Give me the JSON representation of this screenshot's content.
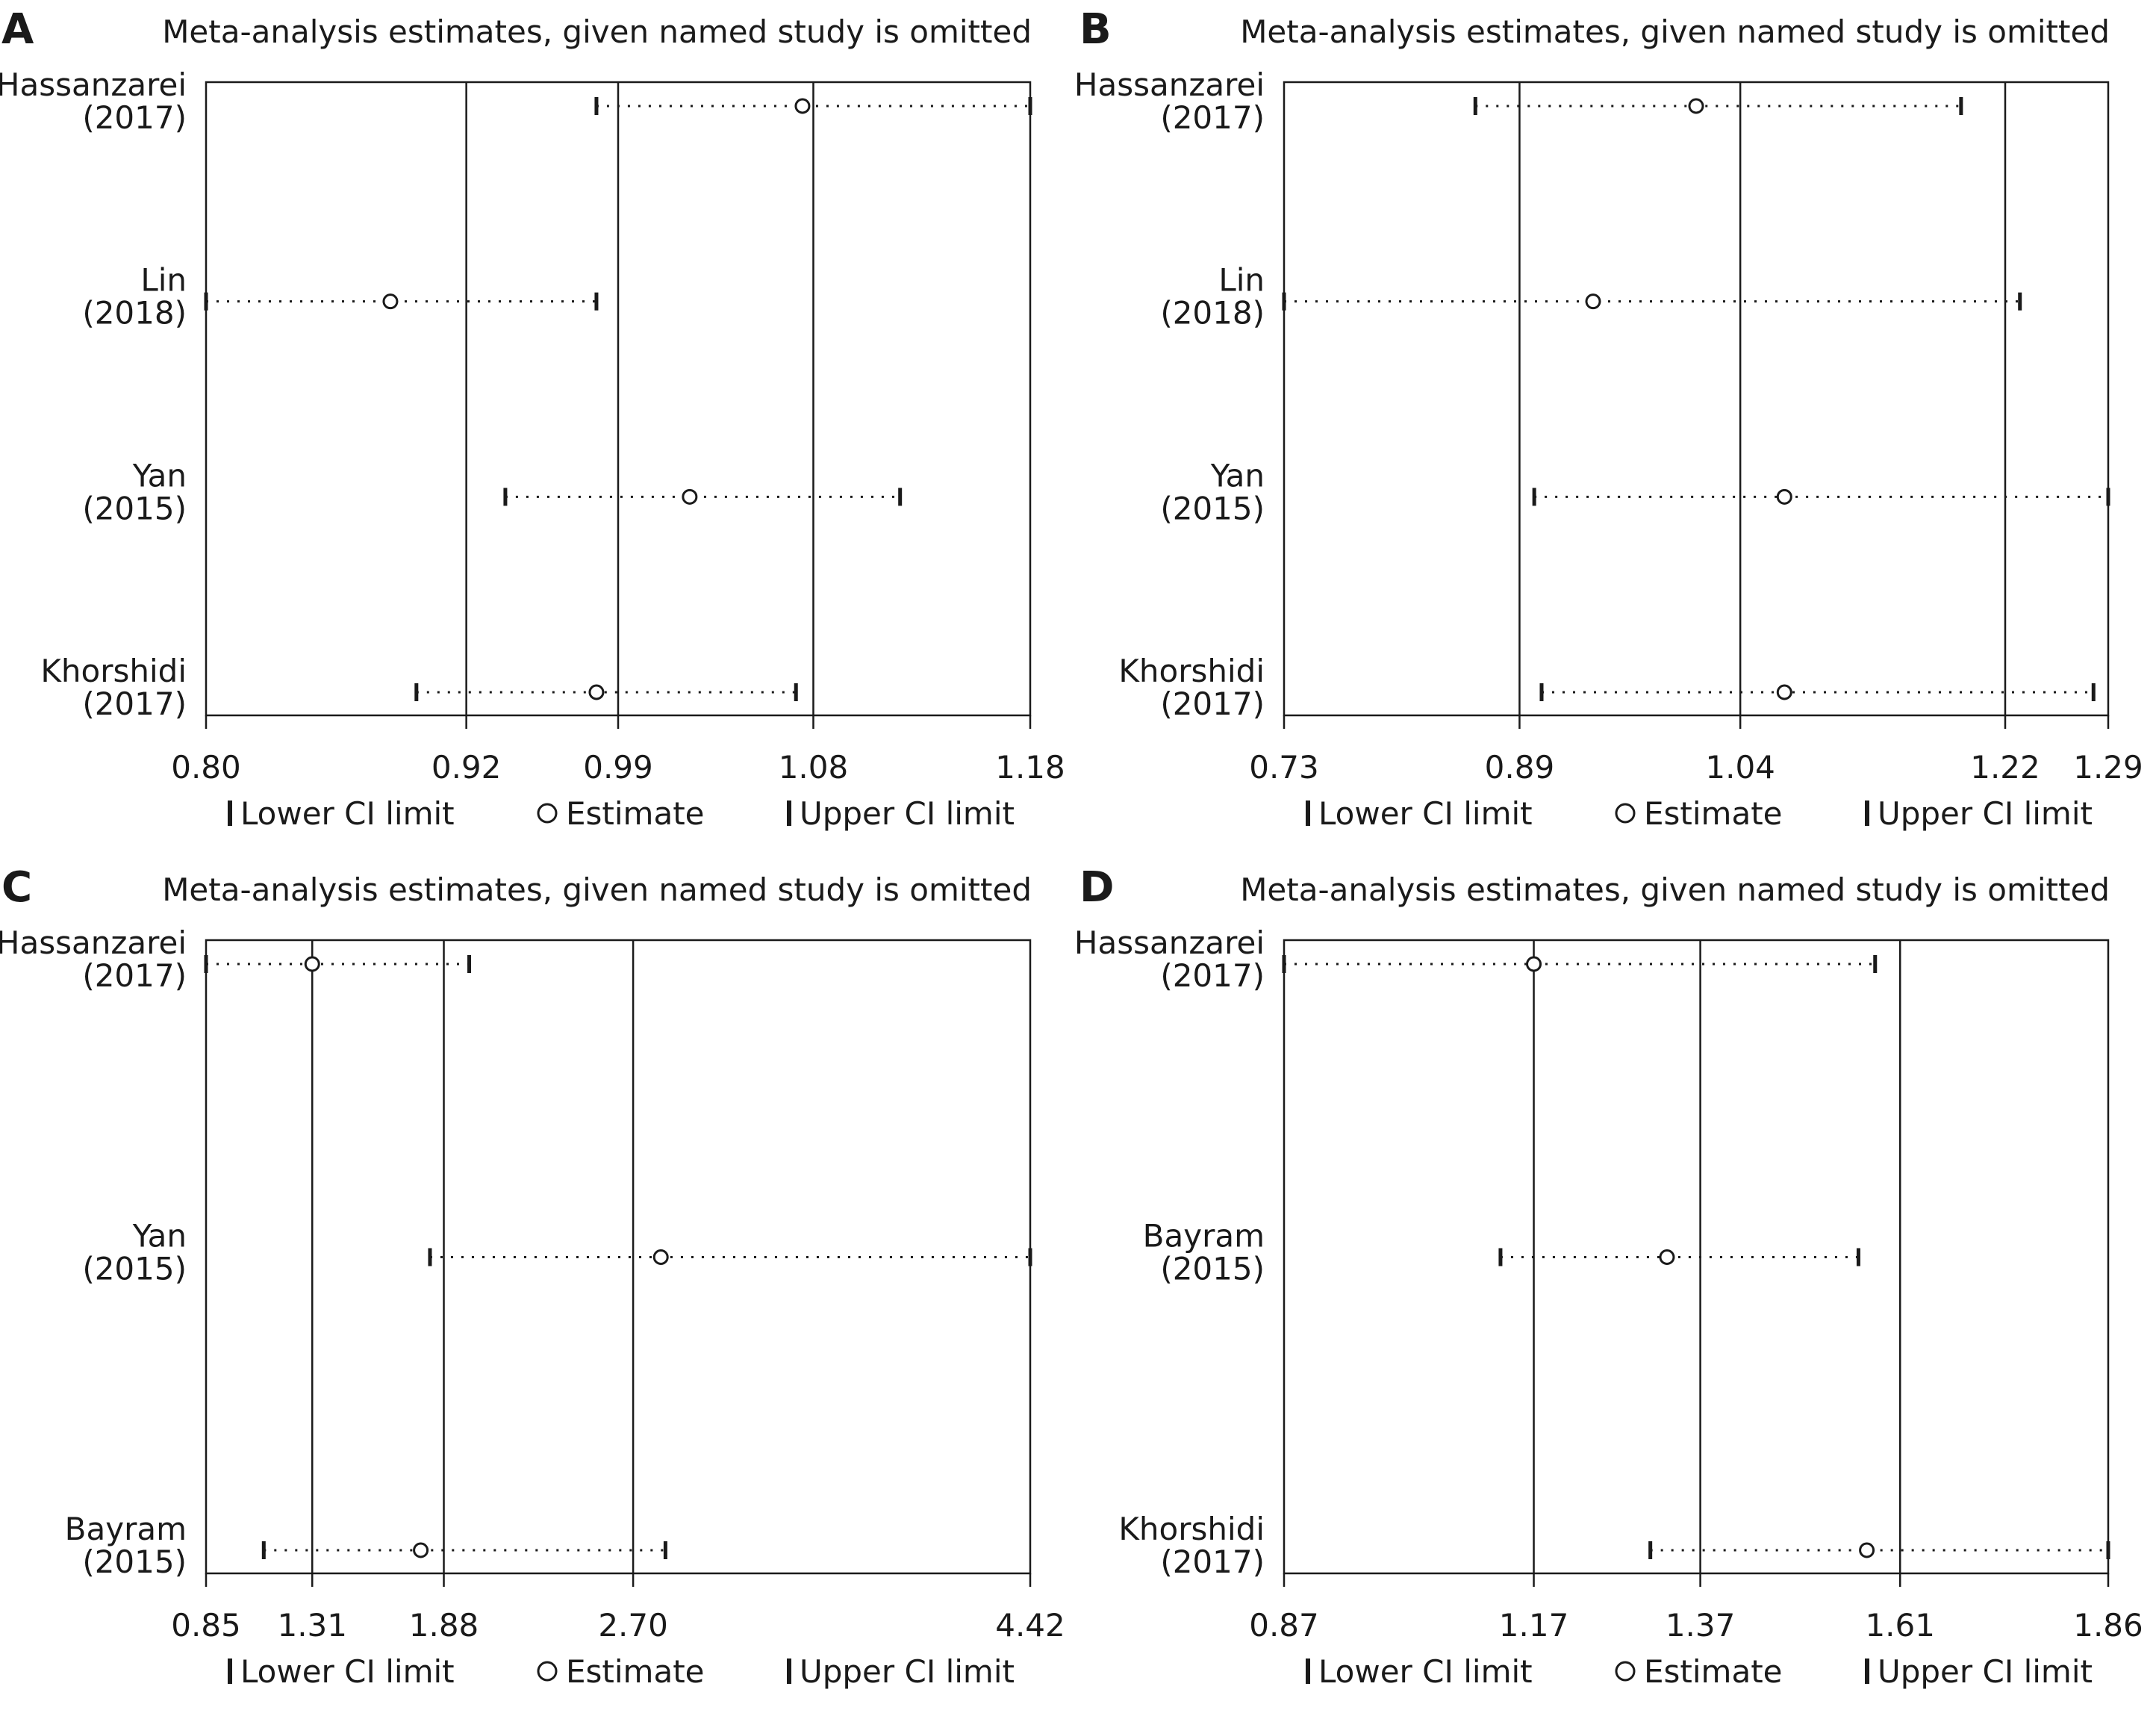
{
  "chart_data": [
    {
      "type": "forest",
      "panel_label": "A",
      "title": "Meta-analysis estimates, given named study is omitted",
      "xticks": [
        "0.80",
        "0.92",
        "0.99",
        "1.08",
        "1.18"
      ],
      "xlim": [
        0.8,
        1.18
      ],
      "reference_lines": [
        0.92,
        0.99,
        1.08
      ],
      "studies": [
        {
          "name": "Hassanzarei",
          "year": "(2017)",
          "lower": 0.98,
          "estimate": 1.075,
          "upper": 1.18
        },
        {
          "name": "Lin",
          "year": "(2018)",
          "lower": 0.8,
          "estimate": 0.885,
          "upper": 0.98
        },
        {
          "name": "Yan",
          "year": "(2015)",
          "lower": 0.938,
          "estimate": 1.023,
          "upper": 1.12
        },
        {
          "name": "Khorshidi",
          "year": "(2017)",
          "lower": 0.897,
          "estimate": 0.98,
          "upper": 1.072
        }
      ],
      "legend": {
        "lower": "Lower CI limit",
        "estimate": "Estimate",
        "upper": "Upper CI limit"
      }
    },
    {
      "type": "forest",
      "panel_label": "B",
      "title": "Meta-analysis estimates, given named study is omitted",
      "xticks": [
        "0.73",
        "0.89",
        "1.04",
        "1.22",
        "1.29"
      ],
      "xlim": [
        0.73,
        1.29
      ],
      "reference_lines": [
        0.89,
        1.04,
        1.22
      ],
      "studies": [
        {
          "name": "Hassanzarei",
          "year": "(2017)",
          "lower": 0.86,
          "estimate": 1.01,
          "upper": 1.19
        },
        {
          "name": "Lin",
          "year": "(2018)",
          "lower": 0.73,
          "estimate": 0.94,
          "upper": 1.23
        },
        {
          "name": "Yan",
          "year": "(2015)",
          "lower": 0.9,
          "estimate": 1.07,
          "upper": 1.29
        },
        {
          "name": "Khorshidi",
          "year": "(2017)",
          "lower": 0.905,
          "estimate": 1.07,
          "upper": 1.28
        }
      ],
      "legend": {
        "lower": "Lower CI limit",
        "estimate": "Estimate",
        "upper": "Upper CI limit"
      }
    },
    {
      "type": "forest",
      "panel_label": "C",
      "title": "Meta-analysis estimates, given named study is omitted",
      "xticks": [
        "0.85",
        "1.31",
        "1.88",
        "2.70",
        "4.42"
      ],
      "xlim": [
        0.85,
        4.42
      ],
      "reference_lines": [
        1.31,
        1.88,
        2.7
      ],
      "studies": [
        {
          "name": "Hassanzarei",
          "year": "(2017)",
          "lower": 0.85,
          "estimate": 1.31,
          "upper": 1.99
        },
        {
          "name": "Yan",
          "year": "(2015)",
          "lower": 1.82,
          "estimate": 2.82,
          "upper": 4.42
        },
        {
          "name": "Bayram",
          "year": "(2015)",
          "lower": 1.1,
          "estimate": 1.78,
          "upper": 2.84
        }
      ],
      "legend": {
        "lower": "Lower CI limit",
        "estimate": "Estimate",
        "upper": "Upper CI limit"
      }
    },
    {
      "type": "forest",
      "panel_label": "D",
      "title": "Meta-analysis estimates, given named study is omitted",
      "xticks": [
        "0.87",
        "1.17",
        "1.37",
        "1.61",
        "1.86"
      ],
      "xlim": [
        0.87,
        1.86
      ],
      "reference_lines": [
        1.17,
        1.37,
        1.61
      ],
      "studies": [
        {
          "name": "Hassanzarei",
          "year": "(2017)",
          "lower": 0.87,
          "estimate": 1.17,
          "upper": 1.58
        },
        {
          "name": "Bayram",
          "year": "(2015)",
          "lower": 1.13,
          "estimate": 1.33,
          "upper": 1.56
        },
        {
          "name": "Khorshidi",
          "year": "(2017)",
          "lower": 1.31,
          "estimate": 1.57,
          "upper": 1.86
        }
      ],
      "legend": {
        "lower": "Lower CI limit",
        "estimate": "Estimate",
        "upper": "Upper CI limit"
      }
    }
  ],
  "colors": {
    "ink": "#1a1a1a",
    "background": "#ffffff"
  }
}
